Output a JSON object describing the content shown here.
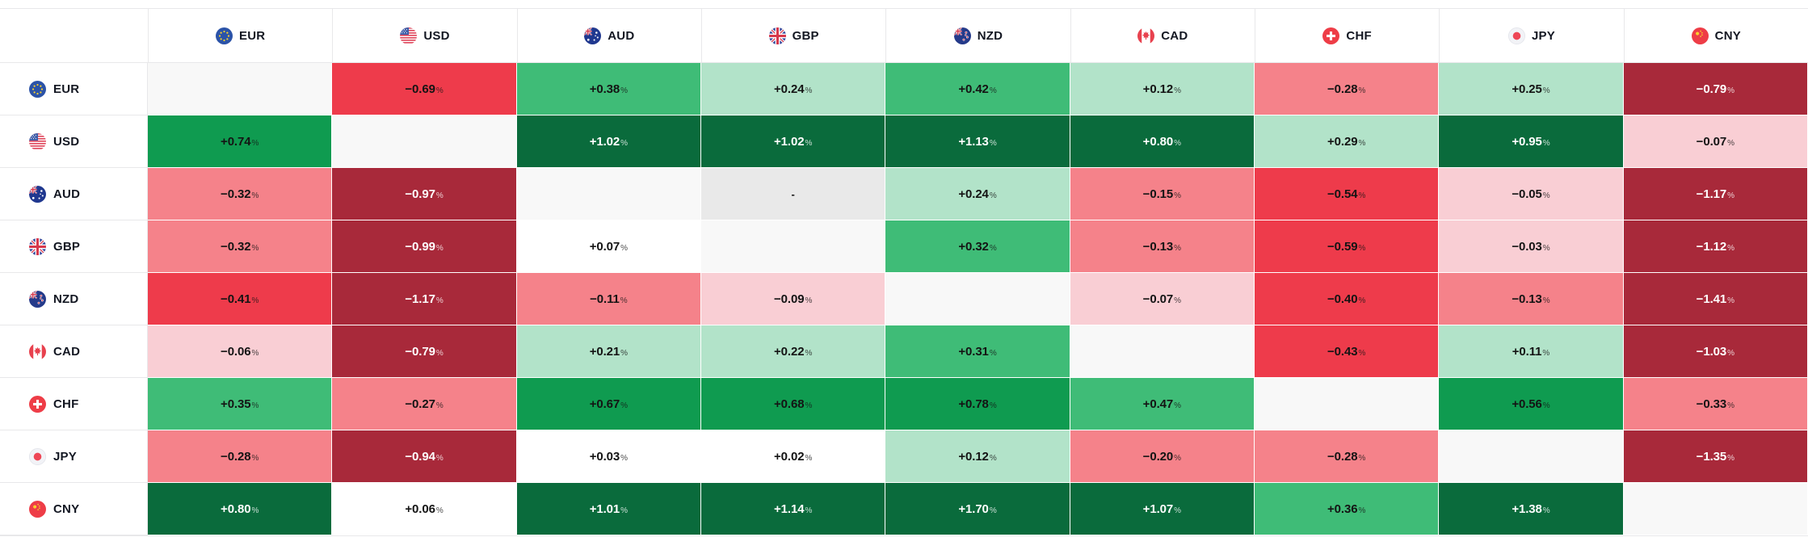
{
  "widget": {
    "name": "forex-heat-map",
    "unit": "%",
    "no_data_symbol": "-"
  },
  "currencies": [
    {
      "code": "EUR",
      "flag": "eur-flag-icon"
    },
    {
      "code": "USD",
      "flag": "usd-flag-icon"
    },
    {
      "code": "AUD",
      "flag": "aud-flag-icon"
    },
    {
      "code": "GBP",
      "flag": "gbp-flag-icon"
    },
    {
      "code": "NZD",
      "flag": "nzd-flag-icon"
    },
    {
      "code": "CAD",
      "flag": "cad-flag-icon"
    },
    {
      "code": "CHF",
      "flag": "chf-flag-icon"
    },
    {
      "code": "JPY",
      "flag": "jpy-flag-icon"
    },
    {
      "code": "CNY",
      "flag": "cny-flag-icon"
    }
  ],
  "chart_data": {
    "type": "heatmap",
    "columns": [
      "EUR",
      "USD",
      "AUD",
      "GBP",
      "NZD",
      "CAD",
      "CHF",
      "JPY",
      "CNY"
    ],
    "rows": [
      "EUR",
      "USD",
      "AUD",
      "GBP",
      "NZD",
      "CAD",
      "CHF",
      "JPY",
      "CNY"
    ],
    "unit": "%",
    "values": [
      [
        null,
        -0.69,
        0.38,
        0.24,
        0.42,
        0.12,
        -0.28,
        0.25,
        -0.79
      ],
      [
        0.74,
        null,
        1.02,
        1.02,
        1.13,
        0.8,
        0.29,
        0.95,
        -0.07
      ],
      [
        -0.32,
        -0.97,
        null,
        "-",
        0.24,
        -0.15,
        -0.54,
        -0.05,
        -1.17
      ],
      [
        -0.32,
        -0.99,
        0.07,
        null,
        0.32,
        -0.13,
        -0.59,
        -0.03,
        -1.12
      ],
      [
        -0.41,
        -1.17,
        -0.11,
        -0.09,
        null,
        -0.07,
        -0.4,
        -0.13,
        -1.41
      ],
      [
        -0.06,
        -0.79,
        0.21,
        0.22,
        0.31,
        null,
        -0.43,
        0.11,
        -1.03
      ],
      [
        0.35,
        -0.27,
        0.67,
        0.68,
        0.78,
        0.47,
        null,
        0.56,
        -0.33
      ],
      [
        -0.28,
        -0.94,
        0.03,
        0.02,
        0.12,
        -0.2,
        -0.28,
        null,
        -1.35
      ],
      [
        0.8,
        0.06,
        1.01,
        1.14,
        1.7,
        1.07,
        0.36,
        1.38,
        null
      ]
    ],
    "color_scale": {
      "positive_bands": [
        {
          "min": 0.0,
          "max": 0.1,
          "color": "white"
        },
        {
          "min": 0.1,
          "max": 0.3,
          "color": "light_green"
        },
        {
          "min": 0.3,
          "max": 0.5,
          "color": "mid_green"
        },
        {
          "min": 0.5,
          "max": 0.8,
          "color": "green"
        },
        {
          "min": 0.8,
          "max": 99,
          "color": "dark_green"
        }
      ],
      "negative_bands": [
        {
          "min": 0.0,
          "max": 0.1,
          "color": "light_pink"
        },
        {
          "min": 0.1,
          "max": 0.35,
          "color": "salmon"
        },
        {
          "min": 0.35,
          "max": 0.75,
          "color": "red"
        },
        {
          "min": 0.75,
          "max": 99,
          "color": "dark_red"
        }
      ]
    }
  },
  "colors": {
    "dark_green": "#0a6b3c",
    "green": "#0f9b50",
    "mid_green": "#3fbc77",
    "light_green": "#b2e3c9",
    "white": "#ffffff",
    "light_pink": "#f9ced4",
    "salmon": "#f5828a",
    "red": "#ee3b4b",
    "dark_red": "#a8293a",
    "diagonal_bg": "#f8f8f8",
    "no_data_bg": "#e9e9e9",
    "border": "#e8e8ea",
    "text_dark": "#141414",
    "text_light": "#ffffff"
  }
}
